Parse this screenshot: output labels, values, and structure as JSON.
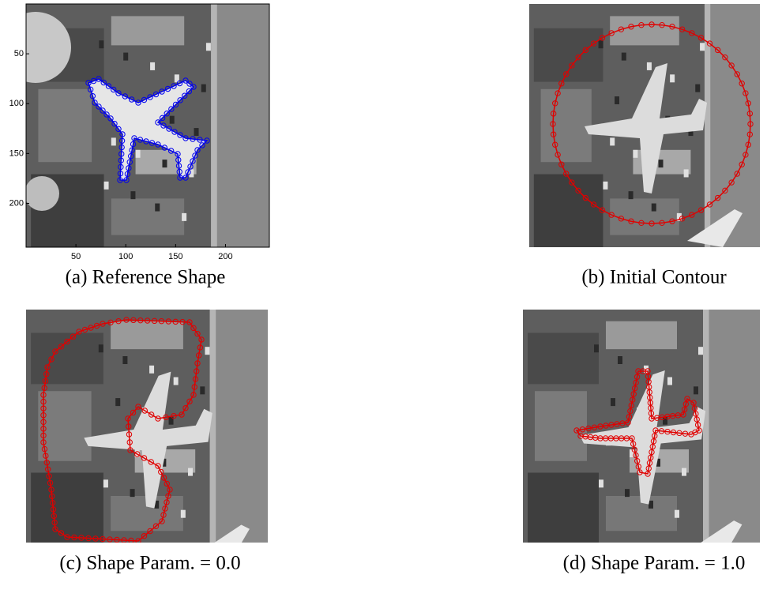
{
  "figure": {
    "panels": [
      {
        "caption": "(a) Reference Shape",
        "xlim": [
          0,
          244
        ],
        "ylim": [
          0,
          244
        ],
        "xticks": [
          50,
          100,
          150,
          200
        ],
        "yticks": [
          50,
          100,
          150,
          200
        ]
      },
      {
        "caption": "(b) Initial Contour"
      },
      {
        "caption": "(c) Shape Param. = 0.0"
      },
      {
        "caption": "(d) Shape Param. = 1.0"
      }
    ]
  }
}
